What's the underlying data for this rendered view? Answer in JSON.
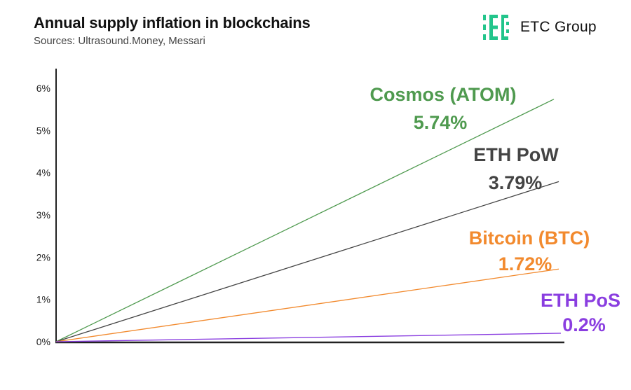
{
  "header": {
    "title": "Annual supply inflation in blockchains",
    "subtitle": "Sources: Ultrasound.Money, Messari"
  },
  "brand": {
    "name": "ETC Group",
    "logo_icon": "etc-group-logo-icon",
    "logo_color": "#22c58b"
  },
  "chart_data": {
    "type": "line",
    "title": "Annual supply inflation in blockchains",
    "subtitle": "Sources: Ultrasound.Money, Messari",
    "xlabel": "",
    "ylabel": "",
    "ylim": [
      0,
      6
    ],
    "yticks": [
      "0%",
      "1%",
      "2%",
      "3%",
      "4%",
      "5%",
      "6%"
    ],
    "grid": false,
    "legend": "inline labels at line ends",
    "series": [
      {
        "name": "Cosmos (ATOM)",
        "value_label": "5.74%",
        "start": 0,
        "end": 5.74,
        "color": "#4f9a4f"
      },
      {
        "name": "ETH PoW",
        "value_label": "3.79%",
        "start": 0,
        "end": 3.79,
        "color": "#444444"
      },
      {
        "name": "Bitcoin (BTC)",
        "value_label": "1.72%",
        "start": 0,
        "end": 1.72,
        "color": "#f28a2e"
      },
      {
        "name": "ETH PoS",
        "value_label": "0.2%",
        "start": 0,
        "end": 0.2,
        "color": "#8a3ee0"
      }
    ]
  }
}
